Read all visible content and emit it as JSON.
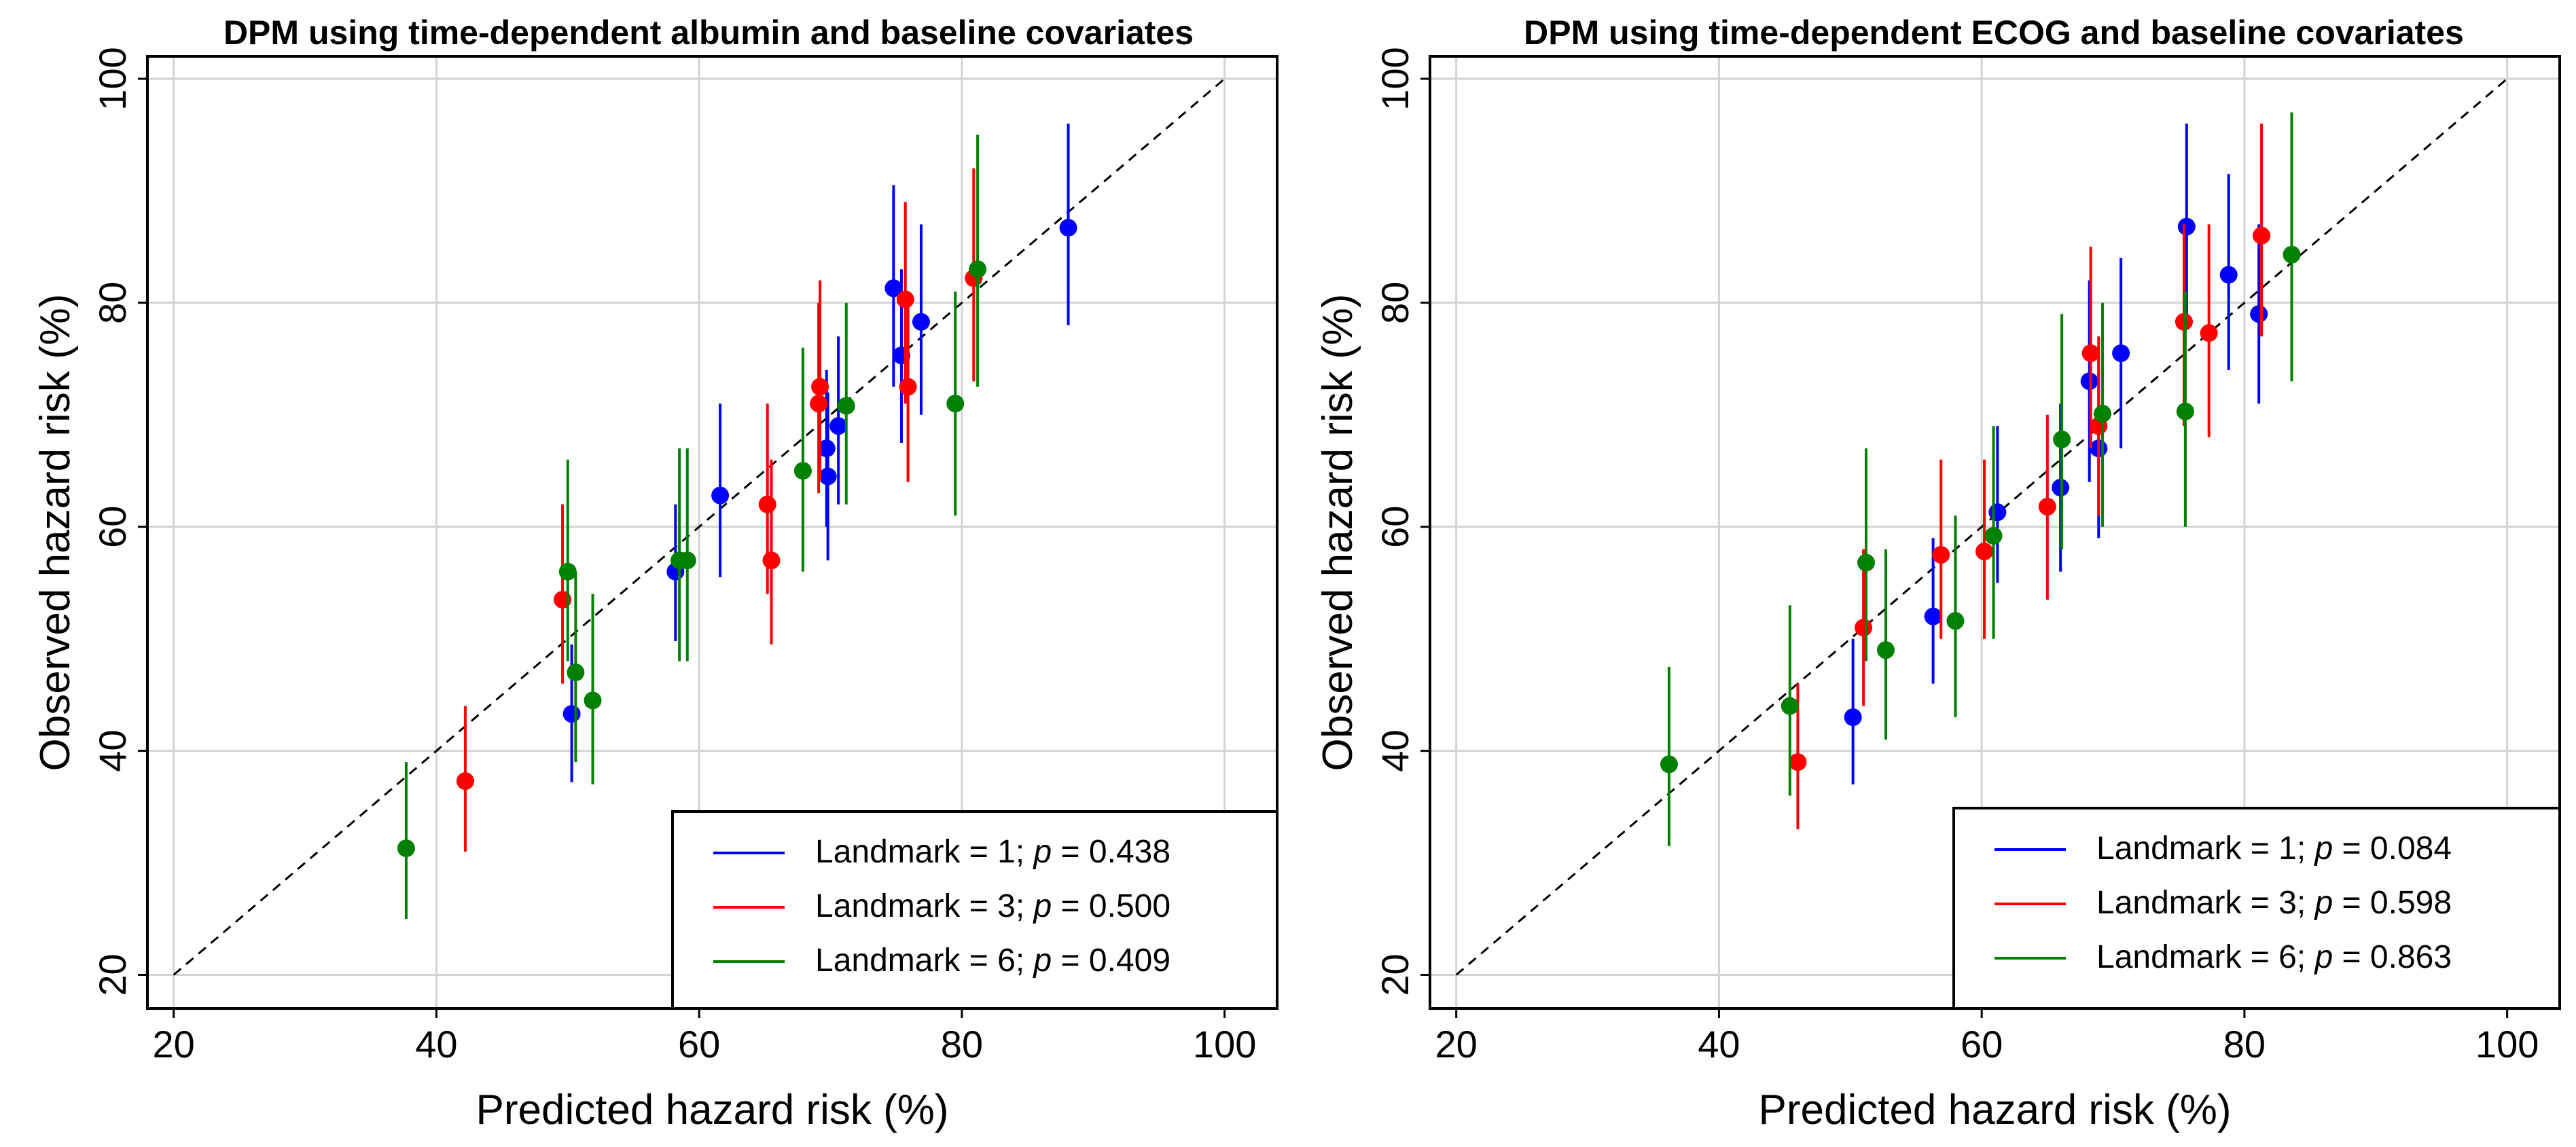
{
  "chart_data": [
    {
      "type": "scatter",
      "title": "DPM using time-dependent albumin and baseline covariates",
      "xlabel": "Predicted hazard risk (%)",
      "ylabel": "Observed hazard risk (%)",
      "xlim": [
        18,
        104
      ],
      "ylim": [
        17,
        102
      ],
      "xticks": [
        20,
        40,
        60,
        80,
        100
      ],
      "yticks": [
        20,
        40,
        60,
        80,
        100
      ],
      "grid": true,
      "legend_position": "bottom-right",
      "reference_line": {
        "from": [
          20,
          20
        ],
        "to": [
          100,
          100
        ],
        "style": "dashed"
      },
      "series": [
        {
          "name": "Landmark = 1",
          "legend": "Landmark = 1; ",
          "p_label": "p",
          "p_value": " = 0.438",
          "color": "#0000ff",
          "points": [
            {
              "x": 50.3,
              "y": 43.3,
              "lo": 37.2,
              "hi": 49.5
            },
            {
              "x": 58.2,
              "y": 56.0,
              "lo": 49.8,
              "hi": 62.0
            },
            {
              "x": 61.6,
              "y": 62.8,
              "lo": 55.5,
              "hi": 71.0
            },
            {
              "x": 69.8,
              "y": 64.5,
              "lo": 57.0,
              "hi": 72.0
            },
            {
              "x": 69.7,
              "y": 67.0,
              "lo": 60.0,
              "hi": 74.0
            },
            {
              "x": 70.6,
              "y": 69.0,
              "lo": 62.0,
              "hi": 77.0
            },
            {
              "x": 74.8,
              "y": 81.3,
              "lo": 72.5,
              "hi": 90.5
            },
            {
              "x": 75.4,
              "y": 75.3,
              "lo": 67.5,
              "hi": 83.0
            },
            {
              "x": 76.9,
              "y": 78.3,
              "lo": 70.0,
              "hi": 87.0
            },
            {
              "x": 88.1,
              "y": 86.7,
              "lo": 78.0,
              "hi": 96.0
            }
          ]
        },
        {
          "name": "Landmark = 3",
          "legend": "Landmark = 3; ",
          "p_label": "p",
          "p_value": " = 0.500",
          "color": "#ff0000",
          "points": [
            {
              "x": 42.2,
              "y": 37.3,
              "lo": 31.0,
              "hi": 44.0
            },
            {
              "x": 49.6,
              "y": 53.5,
              "lo": 46.0,
              "hi": 62.0
            },
            {
              "x": 65.2,
              "y": 62.0,
              "lo": 54.0,
              "hi": 71.0
            },
            {
              "x": 65.5,
              "y": 57.0,
              "lo": 49.5,
              "hi": 66.0
            },
            {
              "x": 69.2,
              "y": 72.5,
              "lo": 64.0,
              "hi": 82.0
            },
            {
              "x": 69.1,
              "y": 71.0,
              "lo": 63.0,
              "hi": 80.0
            },
            {
              "x": 75.7,
              "y": 80.3,
              "lo": 71.0,
              "hi": 89.0
            },
            {
              "x": 75.9,
              "y": 72.5,
              "lo": 64.0,
              "hi": 81.0
            },
            {
              "x": 80.9,
              "y": 82.2,
              "lo": 73.0,
              "hi": 92.0
            }
          ]
        },
        {
          "name": "Landmark = 6",
          "legend": "Landmark = 6; ",
          "p_label": "p",
          "p_value": " = 0.409",
          "color": "#008000",
          "points": [
            {
              "x": 37.7,
              "y": 31.3,
              "lo": 25.0,
              "hi": 39.0
            },
            {
              "x": 50.0,
              "y": 56.0,
              "lo": 48.0,
              "hi": 66.0
            },
            {
              "x": 50.6,
              "y": 47.0,
              "lo": 39.0,
              "hi": 56.0
            },
            {
              "x": 51.9,
              "y": 44.5,
              "lo": 37.0,
              "hi": 54.0
            },
            {
              "x": 58.5,
              "y": 57.0,
              "lo": 48.0,
              "hi": 67.0
            },
            {
              "x": 59.1,
              "y": 57.0,
              "lo": 48.0,
              "hi": 67.0
            },
            {
              "x": 67.9,
              "y": 65.0,
              "lo": 56.0,
              "hi": 76.0
            },
            {
              "x": 71.2,
              "y": 70.8,
              "lo": 62.0,
              "hi": 80.0
            },
            {
              "x": 79.5,
              "y": 71.0,
              "lo": 61.0,
              "hi": 81.0
            },
            {
              "x": 81.2,
              "y": 83.0,
              "lo": 72.5,
              "hi": 95.0
            }
          ]
        }
      ]
    },
    {
      "type": "scatter",
      "title": "DPM using time-dependent ECOG and baseline covariates",
      "xlabel": "Predicted hazard risk (%)",
      "ylabel": "Observed hazard risk (%)",
      "xlim": [
        18,
        104
      ],
      "ylim": [
        17,
        102
      ],
      "xticks": [
        20,
        40,
        60,
        80,
        100
      ],
      "yticks": [
        20,
        40,
        60,
        80,
        100
      ],
      "grid": true,
      "legend_position": "bottom-right",
      "reference_line": {
        "from": [
          20,
          20
        ],
        "to": [
          100,
          100
        ],
        "style": "dashed"
      },
      "series": [
        {
          "name": "Landmark = 1",
          "legend": "Landmark = 1; ",
          "p_label": "p",
          "p_value": " = 0.084",
          "color": "#0000ff",
          "points": [
            {
              "x": 50.2,
              "y": 43.0,
              "lo": 37.0,
              "hi": 50.0
            },
            {
              "x": 56.3,
              "y": 52.0,
              "lo": 46.0,
              "hi": 59.0
            },
            {
              "x": 61.2,
              "y": 61.3,
              "lo": 55.0,
              "hi": 69.0
            },
            {
              "x": 66.0,
              "y": 63.5,
              "lo": 56.0,
              "hi": 71.0
            },
            {
              "x": 68.2,
              "y": 73.0,
              "lo": 64.0,
              "hi": 82.0
            },
            {
              "x": 68.9,
              "y": 67.0,
              "lo": 59.0,
              "hi": 76.0
            },
            {
              "x": 70.6,
              "y": 75.5,
              "lo": 67.0,
              "hi": 84.0
            },
            {
              "x": 75.6,
              "y": 86.8,
              "lo": 78.0,
              "hi": 96.0
            },
            {
              "x": 78.8,
              "y": 82.5,
              "lo": 74.0,
              "hi": 91.5
            },
            {
              "x": 81.1,
              "y": 79.0,
              "lo": 71.0,
              "hi": 87.0
            }
          ]
        },
        {
          "name": "Landmark = 3",
          "legend": "Landmark = 3; ",
          "p_label": "p",
          "p_value": " = 0.598",
          "color": "#ff0000",
          "points": [
            {
              "x": 46.0,
              "y": 39.0,
              "lo": 33.0,
              "hi": 46.0
            },
            {
              "x": 51.0,
              "y": 51.0,
              "lo": 44.0,
              "hi": 58.0
            },
            {
              "x": 56.9,
              "y": 57.5,
              "lo": 50.0,
              "hi": 66.0
            },
            {
              "x": 60.2,
              "y": 57.8,
              "lo": 50.0,
              "hi": 66.0
            },
            {
              "x": 65.0,
              "y": 61.8,
              "lo": 53.5,
              "hi": 70.0
            },
            {
              "x": 68.3,
              "y": 75.5,
              "lo": 67.0,
              "hi": 85.0
            },
            {
              "x": 68.9,
              "y": 69.0,
              "lo": 61.0,
              "hi": 77.0
            },
            {
              "x": 75.4,
              "y": 78.3,
              "lo": 69.0,
              "hi": 87.0
            },
            {
              "x": 77.3,
              "y": 77.3,
              "lo": 68.0,
              "hi": 87.0
            },
            {
              "x": 81.3,
              "y": 86.0,
              "lo": 77.0,
              "hi": 96.0
            }
          ]
        },
        {
          "name": "Landmark = 6",
          "legend": "Landmark = 6; ",
          "p_label": "p",
          "p_value": " = 0.863",
          "color": "#008000",
          "points": [
            {
              "x": 36.2,
              "y": 38.8,
              "lo": 31.5,
              "hi": 47.5
            },
            {
              "x": 45.4,
              "y": 44.0,
              "lo": 36.0,
              "hi": 53.0
            },
            {
              "x": 51.2,
              "y": 56.8,
              "lo": 48.0,
              "hi": 67.0
            },
            {
              "x": 52.7,
              "y": 49.0,
              "lo": 41.0,
              "hi": 58.0
            },
            {
              "x": 58.0,
              "y": 51.6,
              "lo": 43.0,
              "hi": 61.0
            },
            {
              "x": 60.9,
              "y": 59.2,
              "lo": 50.0,
              "hi": 69.0
            },
            {
              "x": 66.1,
              "y": 67.8,
              "lo": 58.0,
              "hi": 79.0
            },
            {
              "x": 69.2,
              "y": 70.1,
              "lo": 60.0,
              "hi": 80.0
            },
            {
              "x": 75.5,
              "y": 70.3,
              "lo": 60.0,
              "hi": 81.0
            },
            {
              "x": 83.6,
              "y": 84.3,
              "lo": 73.0,
              "hi": 97.0
            }
          ]
        }
      ]
    }
  ]
}
